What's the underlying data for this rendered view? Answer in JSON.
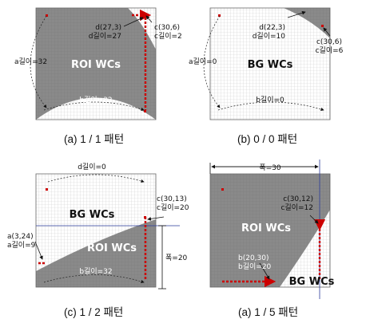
{
  "panels": [
    {
      "caption": "(a) 1 / 1 패턴",
      "region_main": "ROI WCs",
      "labels": [
        "d(27,3)",
        "d길이=27",
        "c(30,6)",
        "c길이=2",
        "a길이=32",
        "b길이=32"
      ]
    },
    {
      "caption": "(b) 0 / 0 패턴",
      "region_main": "BG WCs",
      "labels": [
        "d(22,3)",
        "d길이=10",
        "c(30,6)",
        "c길이=6",
        "a길이=0",
        "b길이=0"
      ]
    },
    {
      "caption": "(c) 1 / 2 패턴",
      "region_top": "BG WCs",
      "region_bottom": "ROI WCs",
      "labels": [
        "d길이=0",
        "c(30,13)",
        "c길이=20",
        "a(3,24)",
        "a길이=9",
        "b길이=32",
        "폭=20"
      ]
    },
    {
      "caption": "(a) 1 / 5 패턴",
      "region_main": "ROI WCs",
      "region_corner": "BG WCs",
      "labels": [
        "폭=30",
        "c(30,12)",
        "c길이=12",
        "b(20,30)",
        "b길이=20"
      ]
    }
  ],
  "colors": {
    "roi_fill": "#8a8a8a",
    "grid_line": "#d0d0d0",
    "grid_line_dark": "#777777",
    "arrow_red": "#cc0000",
    "boundary_blue": "#2a3a9a"
  }
}
